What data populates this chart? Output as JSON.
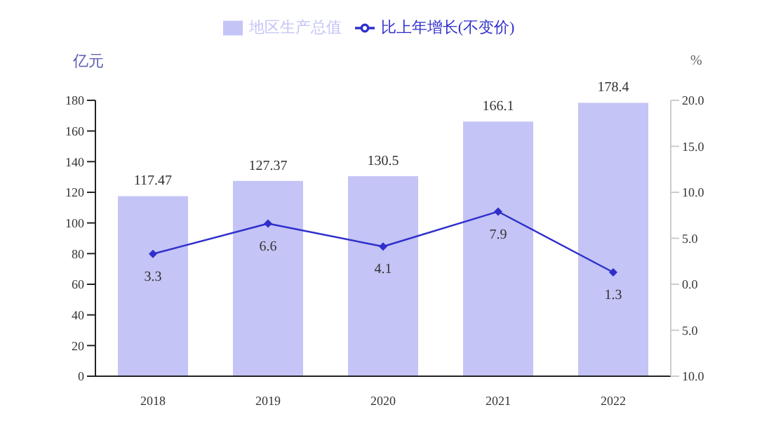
{
  "chart_data": {
    "type": "bar",
    "categories": [
      "2018",
      "2019",
      "2020",
      "2021",
      "2022"
    ],
    "ylabel": "亿元",
    "y2label": "%",
    "series": [
      {
        "name": "地区生产总值",
        "color": "#c4c4f6",
        "values": [
          117.47,
          127.37,
          130.5,
          166.1,
          178.4
        ]
      },
      {
        "name": "比上年增长(不变价)",
        "type": "line",
        "axis": "y2",
        "color": "#2f2fcc",
        "marker": "diamond",
        "values": [
          3.3,
          6.6,
          4.1,
          7.9,
          1.3
        ]
      }
    ],
    "ylim": [
      0,
      180
    ],
    "yticks": [
      0,
      20,
      40,
      60,
      80,
      100,
      120,
      140,
      160,
      180
    ],
    "y2lim": [
      -10,
      20
    ],
    "y2ticks": [
      {
        "value": -10,
        "label": "10.0"
      },
      {
        "value": -5,
        "label": "5.0"
      },
      {
        "value": 0,
        "label": "0.0"
      },
      {
        "value": 5,
        "label": "5.0"
      },
      {
        "value": 10,
        "label": "10.0"
      },
      {
        "value": 15,
        "label": "15.0"
      },
      {
        "value": 20,
        "label": "20.0"
      }
    ],
    "data_labels": true,
    "legend": "top",
    "grid": false
  }
}
